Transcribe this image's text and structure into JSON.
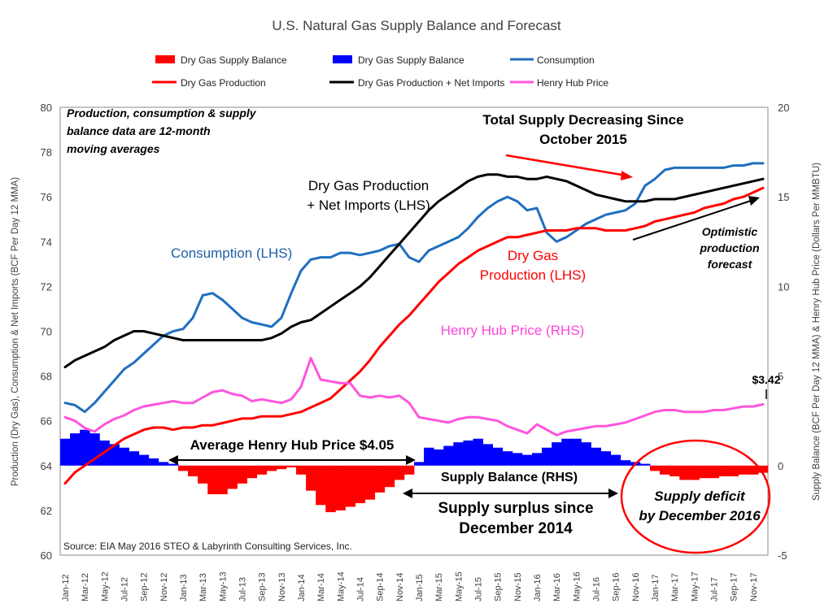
{
  "chart_data": {
    "type": "bar+line",
    "title": "U.S. Natural Gas Supply  Balance and Forecast",
    "ylabel_left": "Production  (Dry Gas), Consumption  & Net Imports (BCF Per Day 12 MMA)",
    "ylabel_right": "Supply Balance (BCF Per Day 12 MMA) & Henry Hub Price  (Dollars Per MMBTU)",
    "ylim_left": [
      60,
      80
    ],
    "ylim_right": [
      -5,
      20
    ],
    "yticks_left": [
      "60",
      "62",
      "64",
      "66",
      "68",
      "70",
      "72",
      "74",
      "76",
      "78",
      "80"
    ],
    "yticks_right": [
      "-5",
      "0",
      "5",
      "10",
      "15",
      "20"
    ],
    "grid": false,
    "legend_position": "top",
    "x_tick_labels": [
      "Jan-12",
      "Mar-12",
      "May-12",
      "Jul-12",
      "Sep-12",
      "Nov-12",
      "Jan-13",
      "Mar-13",
      "May-13",
      "Jul-13",
      "Sep-13",
      "Nov-13",
      "Jan-14",
      "Mar-14",
      "May-14",
      "Jul-14",
      "Sep-14",
      "Nov-14",
      "Jan-15",
      "Mar-15",
      "May-15",
      "Jul-15",
      "Sep-15",
      "Nov-15",
      "Jan-16",
      "Mar-16",
      "May-16",
      "Jul-16",
      "Sep-16",
      "Nov-16",
      "Jan-17",
      "Mar-17",
      "May-17",
      "Jul-17",
      "Sep-17",
      "Nov-17"
    ],
    "legend": [
      {
        "label": "Dry Gas Supply Balance",
        "color": "#ff0000",
        "kind": "bar"
      },
      {
        "label": "Dry Gas Supply Balance",
        "color": "#0000ff",
        "kind": "bar"
      },
      {
        "label": "Consumption",
        "color": "#1f6fbf",
        "kind": "line"
      },
      {
        "label": "Dry Gas Production",
        "color": "#ff0000",
        "kind": "line"
      },
      {
        "label": "Dry Gas Production + Net Imports",
        "color": "#000000",
        "kind": "line"
      },
      {
        "label": "Henry Hub Price",
        "color": "#ff55dd",
        "kind": "line"
      }
    ],
    "series": [
      {
        "name": "Consumption",
        "axis": "left",
        "color": "#1f6fbf",
        "values": [
          66.8,
          66.7,
          66.4,
          66.8,
          67.3,
          67.8,
          68.3,
          68.6,
          69.0,
          69.4,
          69.8,
          70.0,
          70.1,
          70.6,
          71.6,
          71.7,
          71.4,
          71.0,
          70.6,
          70.4,
          70.3,
          70.2,
          70.6,
          71.7,
          72.7,
          73.2,
          73.3,
          73.3,
          73.5,
          73.5,
          73.4,
          73.5,
          73.6,
          73.8,
          73.9,
          73.3,
          73.1,
          73.6,
          73.8,
          74.0,
          74.2,
          74.6,
          75.1,
          75.5,
          75.8,
          76.0,
          75.8,
          75.4,
          75.5,
          74.4,
          74.0,
          74.2,
          74.5,
          74.8,
          75.0,
          75.2,
          75.3,
          75.4,
          75.7,
          76.5,
          76.8,
          77.2,
          77.3,
          77.3,
          77.3,
          77.3,
          77.3,
          77.3,
          77.4,
          77.4,
          77.5,
          77.5
        ]
      },
      {
        "name": "Dry Gas Production",
        "axis": "left",
        "color": "#ff0000",
        "values": [
          63.2,
          63.7,
          64.0,
          64.3,
          64.6,
          64.9,
          65.2,
          65.4,
          65.6,
          65.7,
          65.7,
          65.6,
          65.7,
          65.7,
          65.8,
          65.8,
          65.9,
          66.0,
          66.1,
          66.1,
          66.2,
          66.2,
          66.2,
          66.3,
          66.4,
          66.6,
          66.8,
          67.0,
          67.4,
          67.8,
          68.2,
          68.7,
          69.3,
          69.8,
          70.3,
          70.7,
          71.2,
          71.7,
          72.2,
          72.6,
          73.0,
          73.3,
          73.6,
          73.8,
          74.0,
          74.2,
          74.2,
          74.3,
          74.4,
          74.5,
          74.5,
          74.5,
          74.6,
          74.6,
          74.6,
          74.5,
          74.5,
          74.5,
          74.6,
          74.7,
          74.9,
          75.0,
          75.1,
          75.2,
          75.3,
          75.5,
          75.6,
          75.7,
          75.9,
          76.0,
          76.2,
          76.4
        ]
      },
      {
        "name": "Dry Gas Production + Net Imports",
        "axis": "left",
        "color": "#000000",
        "values": [
          68.4,
          68.7,
          68.9,
          69.1,
          69.3,
          69.6,
          69.8,
          70.0,
          70.0,
          69.9,
          69.8,
          69.7,
          69.6,
          69.6,
          69.6,
          69.6,
          69.6,
          69.6,
          69.6,
          69.6,
          69.6,
          69.7,
          69.9,
          70.2,
          70.4,
          70.5,
          70.8,
          71.1,
          71.4,
          71.7,
          72.0,
          72.4,
          72.9,
          73.4,
          73.9,
          74.4,
          74.9,
          75.4,
          75.8,
          76.1,
          76.4,
          76.7,
          76.9,
          77.0,
          77.0,
          76.9,
          76.9,
          76.8,
          76.8,
          76.9,
          76.8,
          76.7,
          76.5,
          76.3,
          76.1,
          76.0,
          75.9,
          75.8,
          75.8,
          75.8,
          75.9,
          75.9,
          75.9,
          76.0,
          76.1,
          76.2,
          76.3,
          76.4,
          76.5,
          76.6,
          76.7,
          76.8
        ]
      },
      {
        "name": "Henry Hub Price",
        "axis": "right",
        "color": "#ff55dd",
        "values": [
          2.7,
          2.5,
          2.1,
          1.9,
          2.3,
          2.6,
          2.8,
          3.1,
          3.3,
          3.4,
          3.5,
          3.6,
          3.5,
          3.5,
          3.8,
          4.1,
          4.2,
          4.0,
          3.9,
          3.6,
          3.7,
          3.6,
          3.5,
          3.7,
          4.4,
          6.0,
          4.8,
          4.7,
          4.6,
          4.6,
          3.9,
          3.8,
          3.9,
          3.8,
          3.9,
          3.5,
          2.7,
          2.6,
          2.5,
          2.4,
          2.6,
          2.7,
          2.7,
          2.6,
          2.5,
          2.2,
          2.0,
          1.8,
          2.3,
          2.0,
          1.7,
          1.9,
          2.0,
          2.1,
          2.2,
          2.2,
          2.3,
          2.4,
          2.6,
          2.8,
          3.0,
          3.1,
          3.1,
          3.0,
          3.0,
          3.0,
          3.1,
          3.1,
          3.2,
          3.3,
          3.3,
          3.42
        ]
      }
    ],
    "bars": {
      "name": "Dry Gas Supply Balance",
      "axis": "right",
      "positive_color": "#0000ff",
      "negative_color": "#ff0000",
      "values": [
        1.5,
        1.8,
        2.0,
        1.8,
        1.4,
        1.2,
        1.0,
        0.8,
        0.6,
        0.4,
        0.2,
        0.1,
        -0.3,
        -0.6,
        -1.0,
        -1.6,
        -1.6,
        -1.3,
        -1.0,
        -0.7,
        -0.5,
        -0.3,
        -0.2,
        -0.1,
        -0.5,
        -1.4,
        -2.2,
        -2.6,
        -2.5,
        -2.3,
        -2.1,
        -1.9,
        -1.5,
        -1.2,
        -0.8,
        -0.5,
        0.2,
        1.0,
        0.9,
        1.1,
        1.3,
        1.4,
        1.5,
        1.2,
        1.0,
        0.8,
        0.7,
        0.6,
        0.7,
        1.0,
        1.3,
        1.5,
        1.5,
        1.3,
        1.0,
        0.8,
        0.6,
        0.3,
        0.2,
        0.1,
        -0.3,
        -0.5,
        -0.6,
        -0.8,
        -0.8,
        -0.7,
        -0.7,
        -0.6,
        -0.6,
        -0.5,
        -0.5,
        -0.4
      ]
    },
    "annotations": {
      "note": [
        "Production,  consumption & supply",
        "balance  data are 12-month",
        "moving averages"
      ],
      "total_supply": [
        "Total Supply Decreasing Since",
        "October 2015"
      ],
      "dry_gas_net": [
        "Dry Gas Production",
        "+ Net Imports (LHS)"
      ],
      "consumption": "Consumption (LHS)",
      "dry_gas_prod": [
        "Dry Gas",
        "Production (LHS)"
      ],
      "optimistic": [
        "Optimistic",
        "production",
        "forecast"
      ],
      "henry_hub": "Henry Hub Price (RHS)",
      "last_price": "$3.42",
      "avg_price": "Average Henry Hub Price $4.05",
      "supply_balance": "Supply Balance (RHS)",
      "surplus": [
        "Supply surplus since",
        "December 2014"
      ],
      "deficit": [
        "Supply deficit",
        "by December 2016"
      ],
      "source": "Source:  EIA May 2016 STEO & Labyrinth Consulting Services, Inc."
    }
  }
}
